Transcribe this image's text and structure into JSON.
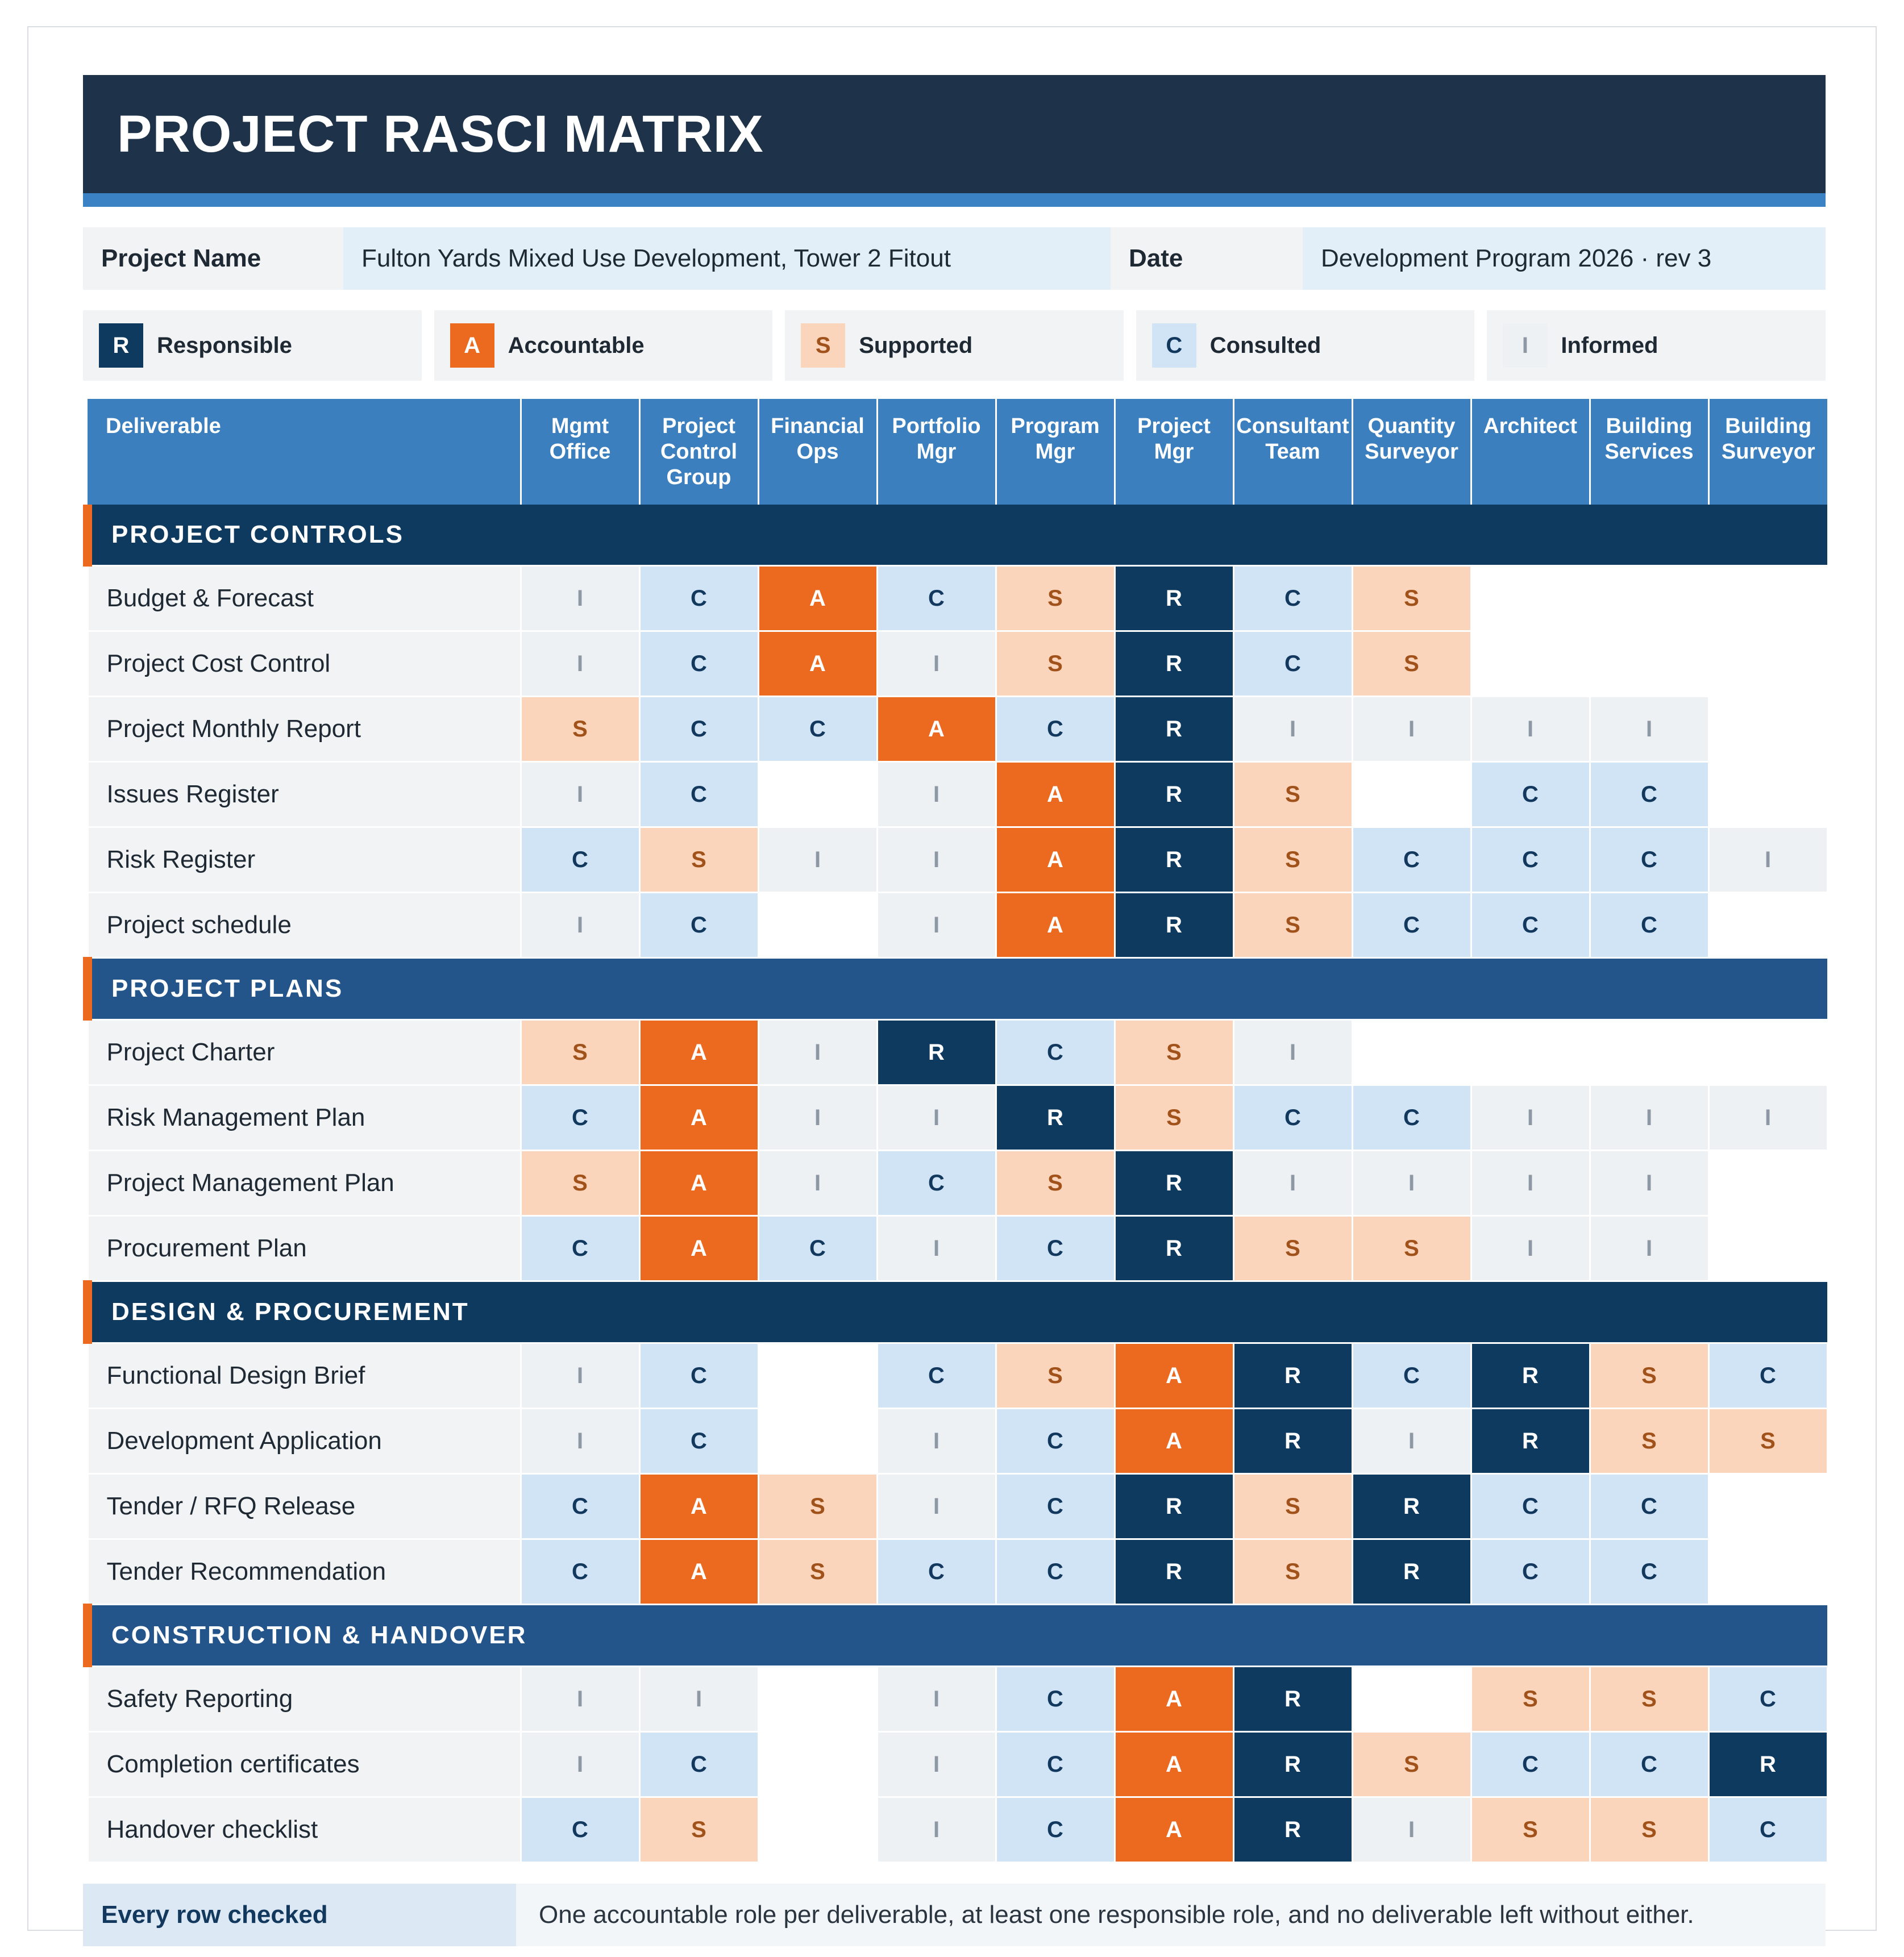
{
  "title": "PROJECT RASCI MATRIX",
  "info": {
    "project_name_label": "Project Name",
    "project_name": "Fulton Yards Mixed Use Development, Tower 2 Fitout",
    "date_label": "Date",
    "date": "Development Program 2026 · rev 3"
  },
  "legend": [
    {
      "key": "R",
      "label": "Responsible"
    },
    {
      "key": "A",
      "label": "Accountable"
    },
    {
      "key": "S",
      "label": "Supported"
    },
    {
      "key": "C",
      "label": "Consulted"
    },
    {
      "key": "I",
      "label": "Informed"
    }
  ],
  "table": {
    "deliverable_header": "Deliverable",
    "roles": [
      "Mgmt Office",
      "Project Control Group",
      "Financial Ops",
      "Portfolio Mgr",
      "Program Mgr",
      "Project Mgr",
      "Consultant Team",
      "Quantity Surveyor",
      "Architect",
      "Building Services",
      "Building Surveyor"
    ],
    "sections": [
      {
        "name": "PROJECT CONTROLS",
        "color": "#0e3a5f",
        "rows": [
          {
            "deliverable": "Budget & Forecast",
            "values": [
              "I",
              "C",
              "A",
              "C",
              "S",
              "R",
              "C",
              "S",
              "",
              "",
              ""
            ]
          },
          {
            "deliverable": "Project Cost Control",
            "values": [
              "I",
              "C",
              "A",
              "I",
              "S",
              "R",
              "C",
              "S",
              "",
              "",
              ""
            ]
          },
          {
            "deliverable": "Project Monthly Report",
            "values": [
              "S",
              "C",
              "C",
              "A",
              "C",
              "R",
              "I",
              "I",
              "I",
              "I",
              ""
            ]
          },
          {
            "deliverable": "Issues Register",
            "values": [
              "I",
              "C",
              "",
              "I",
              "A",
              "R",
              "S",
              "",
              "C",
              "C",
              ""
            ]
          },
          {
            "deliverable": "Risk Register",
            "values": [
              "C",
              "S",
              "I",
              "I",
              "A",
              "R",
              "S",
              "C",
              "C",
              "C",
              "I"
            ]
          },
          {
            "deliverable": "Project schedule",
            "values": [
              "I",
              "C",
              "",
              "I",
              "A",
              "R",
              "S",
              "C",
              "C",
              "C",
              ""
            ]
          }
        ]
      },
      {
        "name": "PROJECT PLANS",
        "color": "#23548a",
        "rows": [
          {
            "deliverable": "Project Charter",
            "values": [
              "S",
              "A",
              "I",
              "R",
              "C",
              "S",
              "I",
              "",
              "",
              "",
              ""
            ]
          },
          {
            "deliverable": "Risk Management Plan",
            "values": [
              "C",
              "A",
              "I",
              "I",
              "R",
              "S",
              "C",
              "C",
              "I",
              "I",
              "I"
            ]
          },
          {
            "deliverable": "Project Management Plan",
            "values": [
              "S",
              "A",
              "I",
              "C",
              "S",
              "R",
              "I",
              "I",
              "I",
              "I",
              ""
            ]
          },
          {
            "deliverable": "Procurement Plan",
            "values": [
              "C",
              "A",
              "C",
              "I",
              "C",
              "R",
              "S",
              "S",
              "I",
              "I",
              ""
            ]
          }
        ]
      },
      {
        "name": "DESIGN & PROCUREMENT",
        "color": "#0e3a5f",
        "rows": [
          {
            "deliverable": "Functional Design Brief",
            "values": [
              "I",
              "C",
              "",
              "C",
              "S",
              "A",
              "R",
              "C",
              "R",
              "S",
              "C"
            ]
          },
          {
            "deliverable": "Development Application",
            "values": [
              "I",
              "C",
              "",
              "I",
              "C",
              "A",
              "R",
              "I",
              "R",
              "S",
              "S"
            ]
          },
          {
            "deliverable": "Tender / RFQ Release",
            "values": [
              "C",
              "A",
              "S",
              "I",
              "C",
              "R",
              "S",
              "R",
              "C",
              "C",
              ""
            ]
          },
          {
            "deliverable": "Tender Recommendation",
            "values": [
              "C",
              "A",
              "S",
              "C",
              "C",
              "R",
              "S",
              "R",
              "C",
              "C",
              ""
            ]
          }
        ]
      },
      {
        "name": "CONSTRUCTION & HANDOVER",
        "color": "#23548a",
        "rows": [
          {
            "deliverable": "Safety Reporting",
            "values": [
              "I",
              "I",
              "",
              "I",
              "C",
              "A",
              "R",
              "",
              "S",
              "S",
              "C"
            ]
          },
          {
            "deliverable": "Completion certificates",
            "values": [
              "I",
              "C",
              "",
              "I",
              "C",
              "A",
              "R",
              "S",
              "C",
              "C",
              "R"
            ]
          },
          {
            "deliverable": "Handover checklist",
            "values": [
              "C",
              "S",
              "",
              "I",
              "C",
              "A",
              "R",
              "I",
              "S",
              "S",
              "C"
            ]
          }
        ]
      }
    ]
  },
  "footer": {
    "label": "Every row checked",
    "text": "One accountable role per deliverable, at least one responsible role, and no deliverable left without either."
  }
}
